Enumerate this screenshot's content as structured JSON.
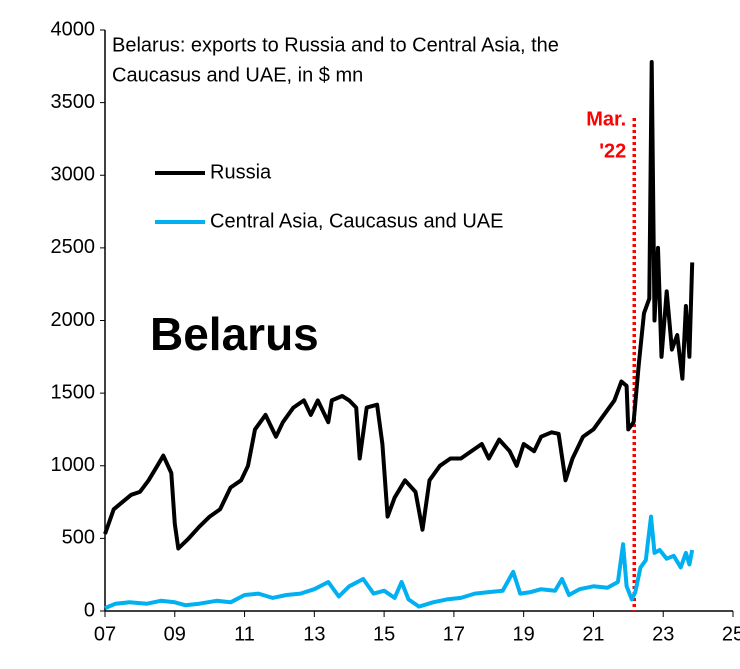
{
  "chart_data": {
    "type": "line",
    "title": [
      "Belarus: exports to Russia and to Central Asia, the",
      "Caucasus and UAE, in $ mn"
    ],
    "annotation": "Belarus",
    "vline": {
      "x": 2022.17,
      "label": [
        "Mar.",
        "'22"
      ],
      "color": "#ff0000"
    },
    "xlim": [
      2007,
      2025
    ],
    "xticks": [
      {
        "value": 2007,
        "label": "07"
      },
      {
        "value": 2009,
        "label": "09"
      },
      {
        "value": 2011,
        "label": "11"
      },
      {
        "value": 2013,
        "label": "13"
      },
      {
        "value": 2015,
        "label": "15"
      },
      {
        "value": 2017,
        "label": "17"
      },
      {
        "value": 2019,
        "label": "19"
      },
      {
        "value": 2021,
        "label": "21"
      },
      {
        "value": 2023,
        "label": "23"
      },
      {
        "value": 2025,
        "label": "25"
      }
    ],
    "ylim": [
      0,
      4000
    ],
    "yticks": [
      0,
      500,
      1000,
      1500,
      2000,
      2500,
      3000,
      3500,
      4000
    ],
    "grid": false,
    "legend": "upper left",
    "series": [
      {
        "name": "Russia",
        "color": "#000000",
        "x": [
          2007.0,
          2007.25,
          2007.5,
          2007.75,
          2008.0,
          2008.25,
          2008.5,
          2008.67,
          2008.9,
          2009.0,
          2009.1,
          2009.4,
          2009.7,
          2010.0,
          2010.3,
          2010.6,
          2010.9,
          2011.1,
          2011.3,
          2011.6,
          2011.9,
          2012.1,
          2012.4,
          2012.7,
          2012.9,
          2013.1,
          2013.4,
          2013.5,
          2013.8,
          2014.0,
          2014.2,
          2014.3,
          2014.5,
          2014.8,
          2014.95,
          2015.1,
          2015.3,
          2015.6,
          2015.9,
          2016.1,
          2016.3,
          2016.6,
          2016.9,
          2017.2,
          2017.5,
          2017.8,
          2018.0,
          2018.3,
          2018.6,
          2018.8,
          2019.0,
          2019.3,
          2019.5,
          2019.8,
          2020.0,
          2020.2,
          2020.4,
          2020.7,
          2021.0,
          2021.3,
          2021.6,
          2021.8,
          2021.95,
          2022.0,
          2022.15,
          2022.3,
          2022.45,
          2022.6,
          2022.67,
          2022.75,
          2022.85,
          2022.95,
          2023.1,
          2023.25,
          2023.4,
          2023.55,
          2023.65,
          2023.75,
          2023.83
        ],
        "values": [
          530,
          700,
          750,
          800,
          820,
          900,
          1000,
          1070,
          950,
          600,
          430,
          500,
          580,
          650,
          700,
          850,
          900,
          1000,
          1250,
          1350,
          1200,
          1300,
          1400,
          1450,
          1350,
          1450,
          1300,
          1450,
          1480,
          1450,
          1400,
          1050,
          1400,
          1420,
          1150,
          650,
          780,
          900,
          820,
          560,
          900,
          1000,
          1050,
          1050,
          1100,
          1150,
          1050,
          1180,
          1100,
          1000,
          1150,
          1100,
          1200,
          1230,
          1220,
          900,
          1050,
          1200,
          1250,
          1350,
          1450,
          1580,
          1550,
          1250,
          1300,
          1700,
          2050,
          2150,
          3780,
          2000,
          2500,
          1750,
          2200,
          1800,
          1900,
          1600,
          2100,
          1750,
          2400
        ]
      },
      {
        "name": "Central Asia, Caucasus and UAE",
        "color": "#00b0f0",
        "x": [
          2007.0,
          2007.3,
          2007.7,
          2008.2,
          2008.6,
          2009.0,
          2009.3,
          2009.7,
          2010.2,
          2010.6,
          2011.0,
          2011.4,
          2011.8,
          2012.2,
          2012.6,
          2013.0,
          2013.4,
          2013.7,
          2014.0,
          2014.4,
          2014.7,
          2015.0,
          2015.3,
          2015.5,
          2015.7,
          2016.0,
          2016.4,
          2016.8,
          2017.2,
          2017.6,
          2018.0,
          2018.4,
          2018.7,
          2018.9,
          2019.2,
          2019.5,
          2019.9,
          2020.1,
          2020.3,
          2020.6,
          2021.0,
          2021.4,
          2021.7,
          2021.85,
          2021.95,
          2022.1,
          2022.2,
          2022.35,
          2022.5,
          2022.65,
          2022.75,
          2022.9,
          2023.1,
          2023.3,
          2023.5,
          2023.65,
          2023.75,
          2023.83
        ],
        "values": [
          20,
          50,
          60,
          50,
          70,
          60,
          40,
          50,
          70,
          60,
          110,
          120,
          90,
          110,
          120,
          150,
          200,
          100,
          170,
          220,
          120,
          140,
          90,
          200,
          80,
          30,
          60,
          80,
          90,
          120,
          130,
          140,
          270,
          120,
          130,
          150,
          140,
          220,
          110,
          150,
          170,
          160,
          200,
          460,
          170,
          80,
          130,
          300,
          350,
          650,
          400,
          420,
          360,
          380,
          300,
          400,
          320,
          420
        ]
      }
    ]
  }
}
